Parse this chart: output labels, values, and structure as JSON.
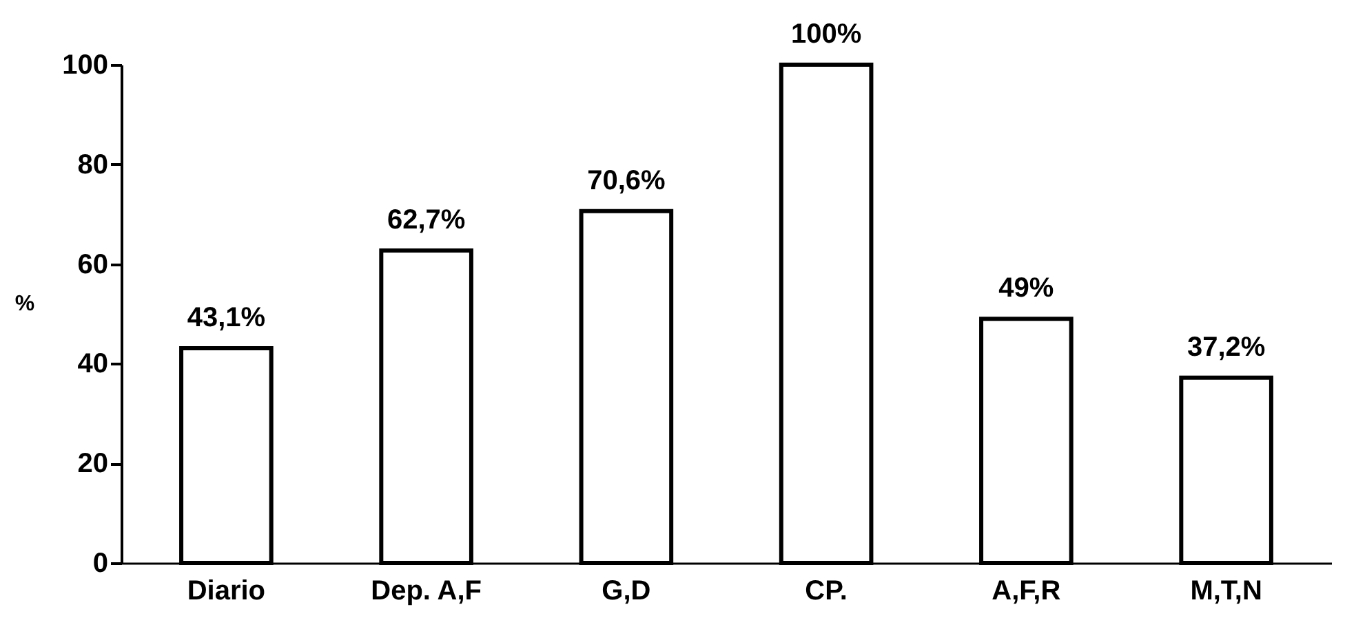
{
  "chart_data": {
    "type": "bar",
    "ylabel": "%",
    "categories": [
      "Diario",
      "Dep. A,F",
      "G,D",
      "CP.",
      "A,F,R",
      "M,T,N"
    ],
    "values": [
      43.1,
      62.7,
      70.6,
      100,
      49,
      37.2
    ],
    "value_labels": [
      "43,1%",
      "62,7%",
      "70,6%",
      "100%",
      "49%",
      "37,2%"
    ],
    "color": "#ffffff",
    "ylim": [
      0,
      100
    ],
    "yticks": [
      0,
      20,
      40,
      60,
      80,
      100
    ],
    "grid": false
  }
}
